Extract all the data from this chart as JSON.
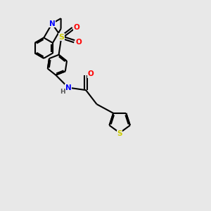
{
  "background_color": "#e8e8e8",
  "bond_color": "#000000",
  "atom_colors": {
    "N": "#0000ff",
    "O": "#ff0000",
    "S_sulfonyl": "#cccc00",
    "S_thiophene": "#cccc00",
    "H": "#555555",
    "C": "#000000"
  },
  "figsize": [
    3.0,
    3.0
  ],
  "dpi": 100,
  "lw": 1.4
}
